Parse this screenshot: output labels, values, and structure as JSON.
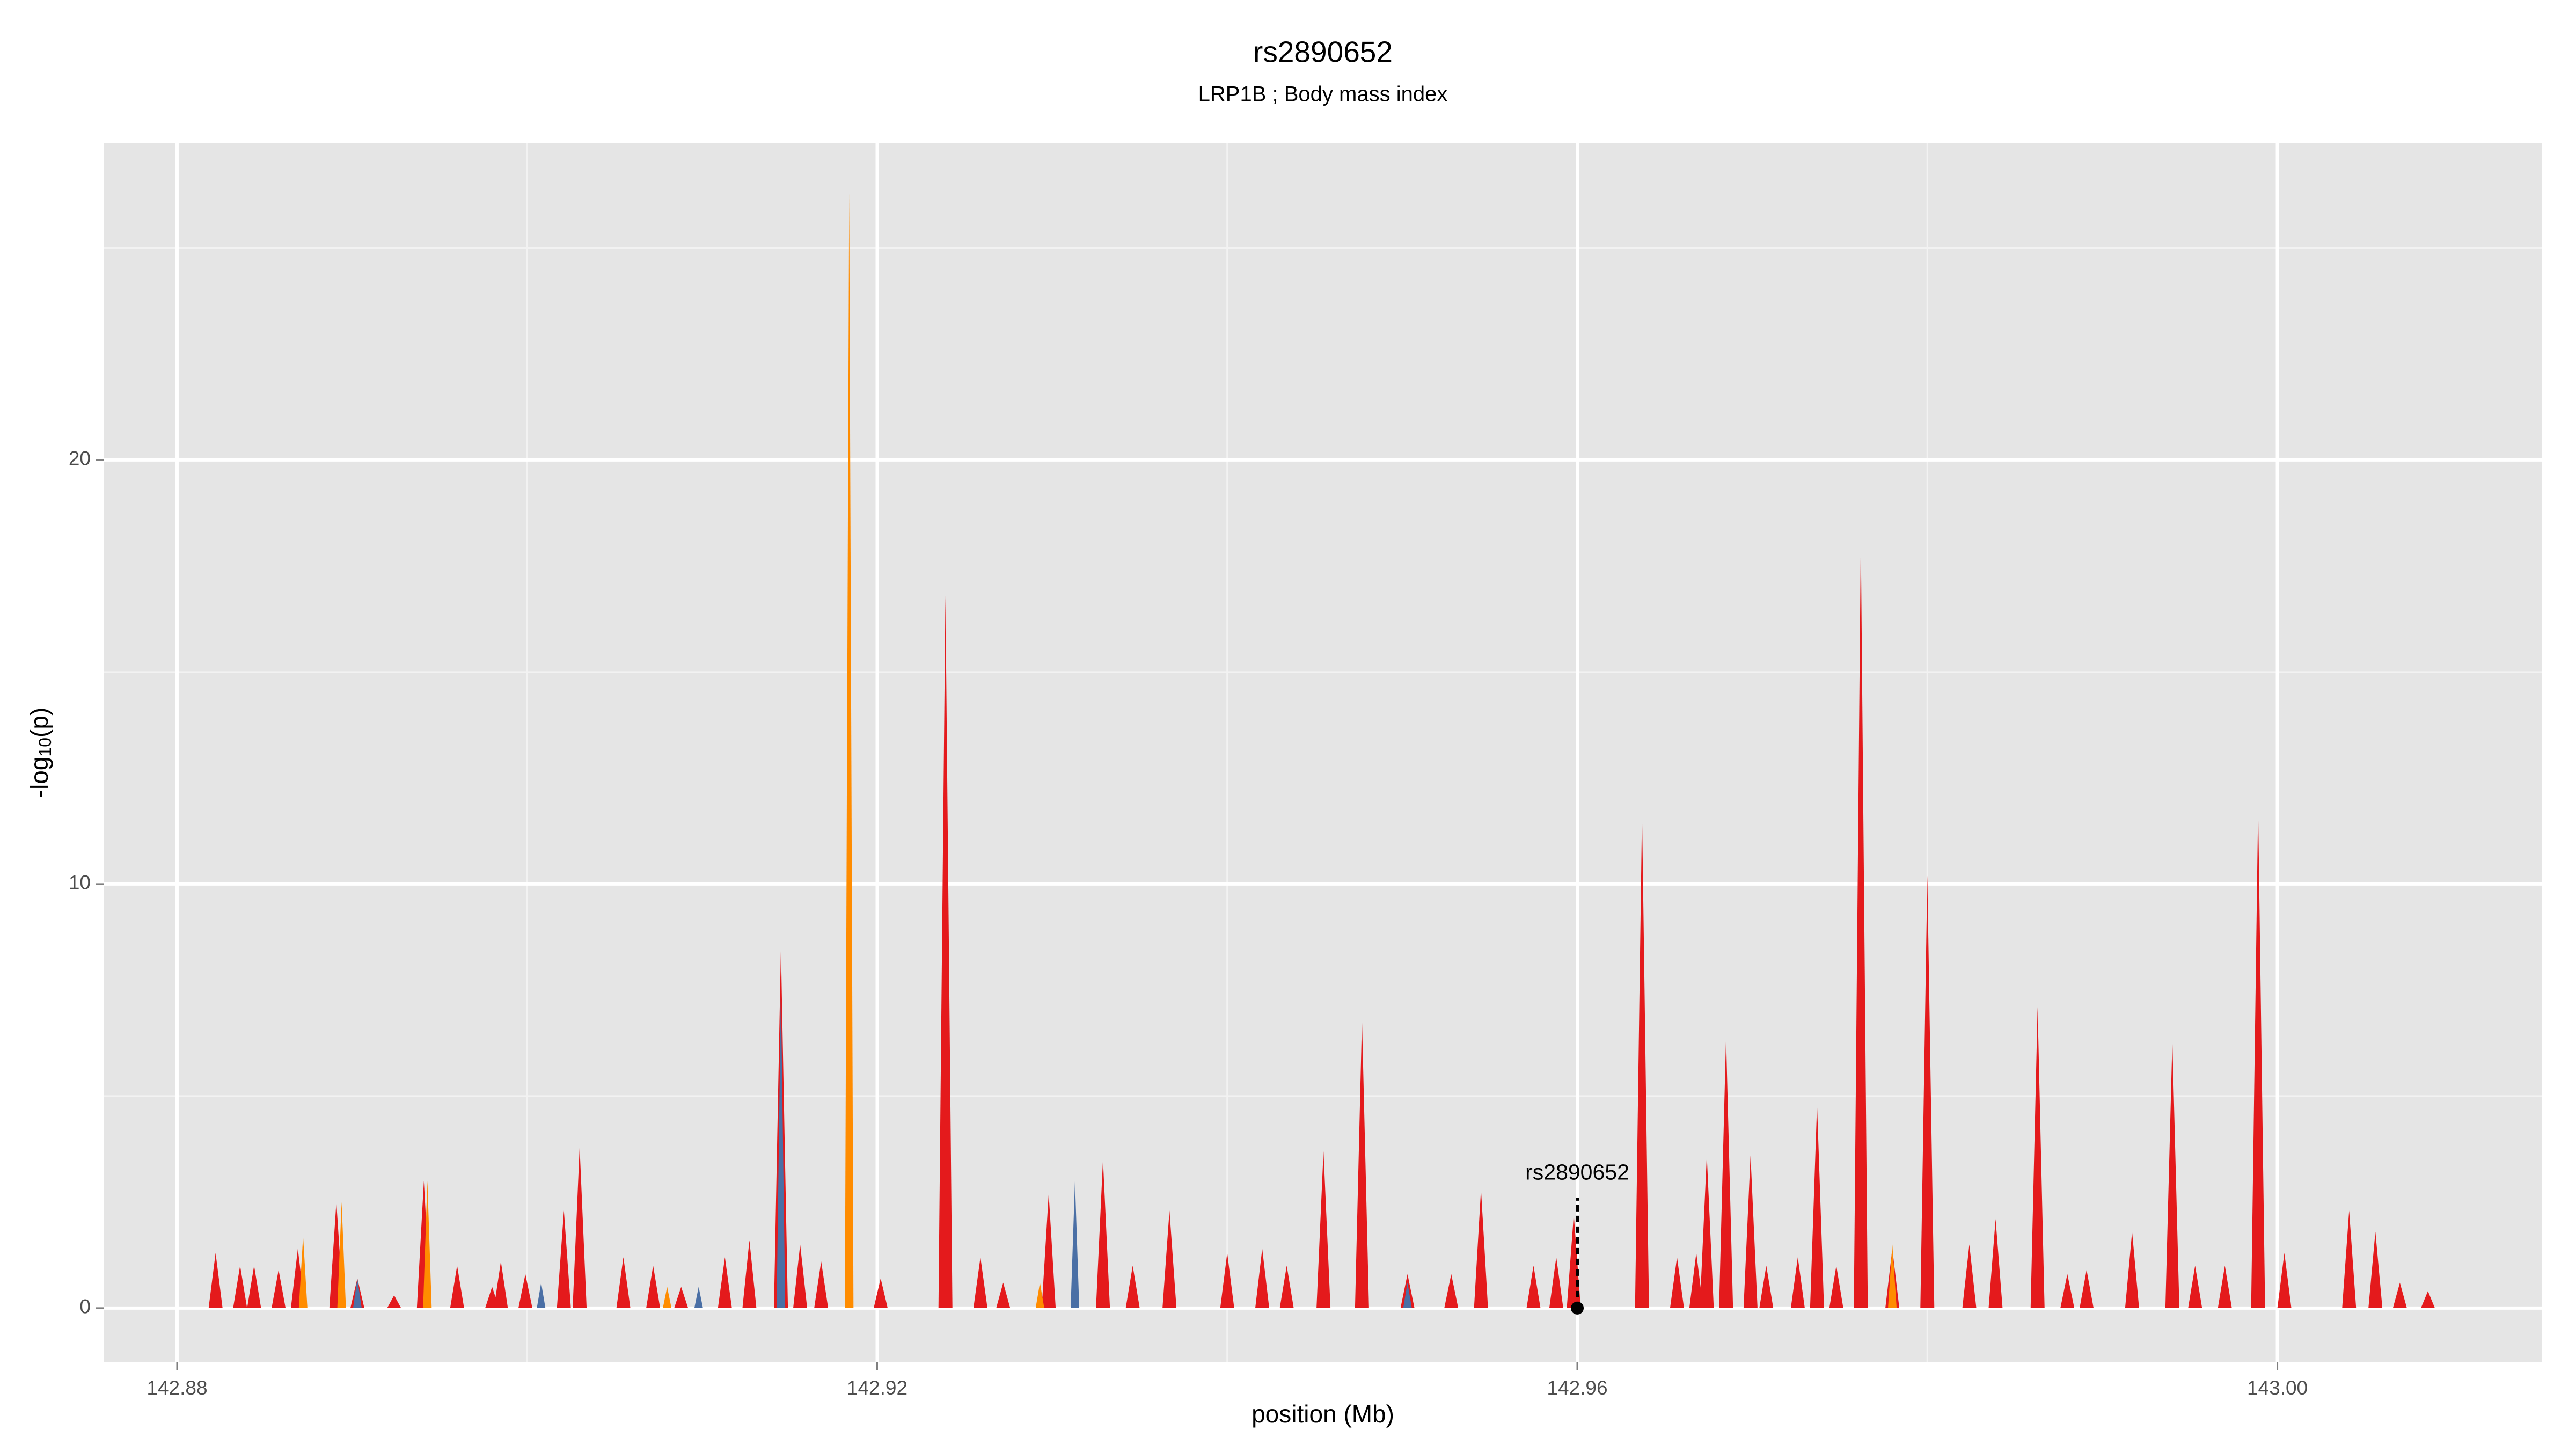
{
  "chart_data": {
    "type": "spike-area",
    "title": "rs2890652",
    "subtitle": "LRP1B ; Body mass index",
    "x_label": "position (Mb)",
    "y_label": {
      "prefix": "-log",
      "subscript": "10",
      "suffix": "(p)"
    },
    "xlim": [
      142.8758,
      143.0151
    ],
    "ylim": [
      -1.28,
      27.48
    ],
    "xticks": [
      142.88,
      142.92,
      142.96,
      {
        "value": 143,
        "label": "143.00"
      }
    ],
    "yticks": [
      0,
      10,
      20
    ],
    "x_minor_grid": [
      142.9,
      142.94,
      142.98
    ],
    "y_minor_grid": [
      5,
      15,
      25
    ],
    "grid": true,
    "series": [
      {
        "color": "#e41a1c",
        "x": [
          142.8822,
          142.8836,
          142.8844,
          142.8858,
          142.8869,
          142.8891,
          142.8903,
          142.8924,
          142.8941,
          142.896,
          142.898,
          142.8985,
          142.8999,
          142.9021,
          142.903,
          142.9055,
          142.9072,
          142.9088,
          142.9113,
          142.9127,
          142.9145,
          142.9156,
          142.9168,
          142.9202,
          142.9239,
          142.9259,
          142.9272,
          142.9298,
          142.9329,
          142.9346,
          142.9367,
          142.94,
          142.942,
          142.9434,
          142.9455,
          142.9477,
          142.9503,
          142.9528,
          142.9545,
          142.9575,
          142.9588,
          142.9598,
          142.9637,
          142.9657,
          142.9668,
          142.9674,
          142.9685,
          142.9699,
          142.9708,
          142.9726,
          142.9737,
          142.9748,
          142.9762,
          142.978,
          142.98,
          142.9824,
          142.9839,
          142.9863,
          142.988,
          142.9891,
          142.9917,
          142.994,
          142.9953,
          142.997,
          142.9989,
          143.0004,
          143.0041,
          143.0056,
          143.007,
          143.0086
        ],
        "values": [
          1.3,
          1.0,
          1.0,
          0.9,
          1.4,
          2.5,
          0.7,
          0.3,
          3.0,
          1.0,
          0.5,
          1.1,
          0.8,
          2.3,
          3.8,
          1.2,
          1.0,
          0.5,
          1.2,
          1.6,
          8.5,
          1.5,
          1.1,
          0.7,
          16.8,
          1.2,
          0.6,
          2.7,
          3.5,
          1.0,
          2.3,
          1.3,
          1.4,
          1.0,
          3.7,
          6.8,
          0.8,
          0.8,
          2.8,
          1.0,
          1.2,
          2.2,
          11.7,
          1.2,
          1.3,
          3.6,
          6.4,
          3.6,
          1.0,
          1.2,
          4.8,
          1.0,
          18.2,
          1.4,
          10.2,
          1.5,
          2.1,
          7.1,
          0.8,
          0.9,
          1.8,
          6.3,
          1.0,
          1.0,
          11.8,
          1.3,
          2.3,
          1.8,
          0.6,
          0.4
        ]
      },
      {
        "color": "#ff8c00",
        "x": [
          142.8872,
          142.8894,
          142.8943,
          142.908,
          142.9184,
          142.9293,
          142.978
        ],
        "values": [
          1.7,
          2.5,
          3.0,
          0.5,
          26.3,
          0.6,
          1.5
        ]
      },
      {
        "color": "#4a6fa5",
        "x": [
          142.8903,
          142.9008,
          142.9098,
          142.9145,
          142.9313,
          142.9503
        ],
        "values": [
          0.7,
          0.6,
          0.5,
          7.5,
          3.0,
          0.6
        ]
      }
    ],
    "annotation": {
      "label": "rs2890652",
      "x": 142.96,
      "y": 0,
      "line_top": 2.6
    }
  }
}
